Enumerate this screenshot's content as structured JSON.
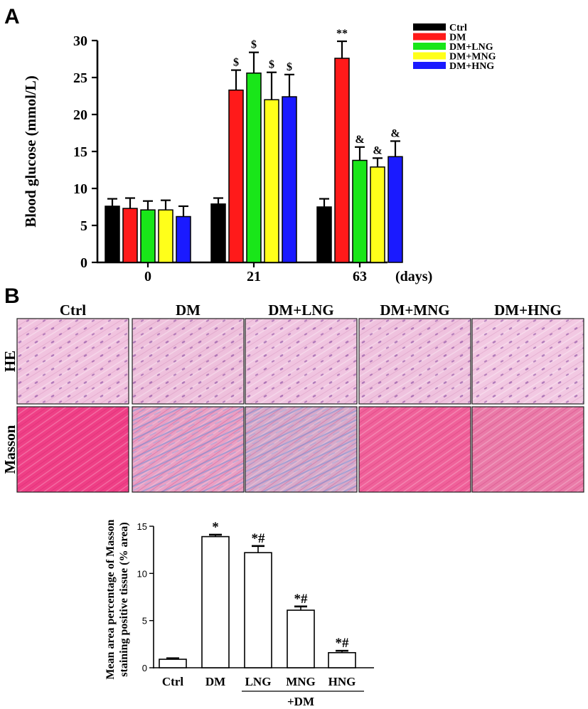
{
  "panel_a_letter": "A",
  "panel_b_letter": "B",
  "colors": {
    "Ctrl": "#000000",
    "DM": "#ff1a1a",
    "DM+LNG": "#19e619",
    "DM+MNG": "#ffff1a",
    "DM+HNG": "#1a1aff"
  },
  "image_grid": {
    "columns": [
      "Ctrl",
      "DM",
      "DM+LNG",
      "DM+MNG",
      "DM+HNG"
    ],
    "rows": [
      "HE",
      "Masson"
    ],
    "stain_colors": {
      "HE": [
        "#f1c3df",
        "#eec0dc",
        "#f0c4e0",
        "#efc2de",
        "#f2c8e2"
      ],
      "Masson": [
        "#ef3f86",
        "#e9a0c4",
        "#d8a9c9",
        "#f0619a",
        "#ea7aa8"
      ]
    },
    "masson_blue": [
      0,
      0.55,
      0.5,
      0,
      0
    ]
  },
  "chart_data": [
    {
      "type": "bar",
      "ylabel": "Blood glucose (mmol/L)",
      "xlabel": "(days)",
      "categories": [
        "0",
        "21",
        "63"
      ],
      "ylim": [
        0,
        30
      ],
      "yticks": [
        0,
        5,
        10,
        15,
        20,
        25,
        30
      ],
      "legend_position": "top-right",
      "series": [
        {
          "name": "Ctrl",
          "values": [
            7.6,
            7.9,
            7.5
          ],
          "errors": [
            1.0,
            0.8,
            1.1
          ],
          "marks": [
            "",
            "",
            ""
          ]
        },
        {
          "name": "DM",
          "values": [
            7.3,
            23.3,
            27.6
          ],
          "errors": [
            1.4,
            2.7,
            2.3
          ],
          "marks": [
            "",
            "$",
            "**"
          ]
        },
        {
          "name": "DM+LNG",
          "values": [
            7.1,
            25.6,
            13.8
          ],
          "errors": [
            1.2,
            2.8,
            1.8
          ],
          "marks": [
            "",
            "$",
            "&"
          ]
        },
        {
          "name": "DM+MNG",
          "values": [
            7.1,
            22.0,
            12.9
          ],
          "errors": [
            1.3,
            3.7,
            1.2
          ],
          "marks": [
            "",
            "$",
            "&"
          ]
        },
        {
          "name": "DM+HNG",
          "values": [
            6.2,
            22.4,
            14.3
          ],
          "errors": [
            1.4,
            3.0,
            2.1
          ],
          "marks": [
            "",
            "$",
            "&"
          ]
        }
      ]
    },
    {
      "type": "bar",
      "ylabel_lines": [
        "Mean area percentage of Masson",
        "staining positive tissue (% area)"
      ],
      "categories": [
        "Ctrl",
        "DM",
        "LNG",
        "MNG",
        "HNG"
      ],
      "group_label": "+DM",
      "ylim": [
        0,
        15
      ],
      "yticks": [
        0,
        5,
        10,
        15
      ],
      "values": [
        0.9,
        13.9,
        12.2,
        6.1,
        1.6
      ],
      "errors": [
        0.1,
        0.2,
        0.7,
        0.4,
        0.2
      ],
      "marks": [
        "",
        "*",
        "*#",
        "*#",
        "*#"
      ]
    }
  ]
}
